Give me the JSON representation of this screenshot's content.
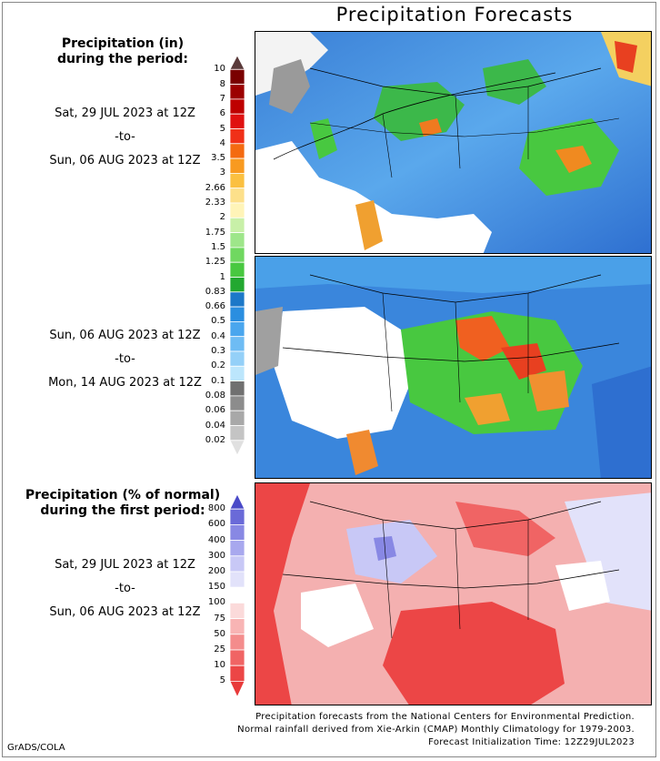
{
  "title": "Precipitation Forecasts",
  "amount_section": {
    "heading_line1": "Precipitation (in)",
    "heading_line2": "during the period:",
    "period1": {
      "start": "Sat, 29 JUL 2023 at 12Z",
      "sep": "-to-",
      "end": "Sun, 06 AUG 2023 at 12Z"
    },
    "period2": {
      "start": "Sun, 06 AUG 2023 at 12Z",
      "sep": "-to-",
      "end": "Mon, 14 AUG 2023 at 12Z"
    },
    "colorbar": {
      "labels": [
        "10",
        "8",
        "7",
        "6",
        "5",
        "4",
        "3.5",
        "3",
        "2.66",
        "2.33",
        "2",
        "1.75",
        "1.5",
        "1.25",
        "1",
        "0.83",
        "0.66",
        "0.5",
        "0.4",
        "0.3",
        "0.2",
        "0.1",
        "0.08",
        "0.06",
        "0.04",
        "0.02"
      ],
      "colors": [
        "#5a3a3a",
        "#7a0000",
        "#9c0000",
        "#be0000",
        "#e01010",
        "#f03018",
        "#f46a10",
        "#f89a20",
        "#fbc040",
        "#fde08a",
        "#fff4b8",
        "#c8f0a8",
        "#9ee68a",
        "#70d860",
        "#48c840",
        "#22a830",
        "#1c78c8",
        "#2a8ee0",
        "#4aa6ee",
        "#6ebcf4",
        "#94d0f8",
        "#bce6fc",
        "#707070",
        "#8c8c8c",
        "#a8a8a8",
        "#c4c4c4",
        "#e0e0e0"
      ]
    }
  },
  "percent_section": {
    "heading_line1": "Precipitation (% of normal)",
    "heading_line2": "during the first period:",
    "period": {
      "start": "Sat, 29 JUL 2023 at 12Z",
      "sep": "-to-",
      "end": "Sun, 06 AUG 2023 at 12Z"
    },
    "colorbar": {
      "labels": [
        "800",
        "600",
        "400",
        "300",
        "200",
        "150",
        "100",
        "75",
        "50",
        "25",
        "10",
        "5"
      ],
      "colors": [
        "#4a4ac8",
        "#6a6ad8",
        "#8888e4",
        "#a8a8ee",
        "#c8c8f6",
        "#e2e2fa",
        "#ffffff",
        "#fbdada",
        "#f8b4b4",
        "#f48c8c",
        "#f06464",
        "#ec4646",
        "#e83a3a"
      ]
    }
  },
  "footer": {
    "line1": "Precipitation forecasts from the National Centers for Environmental Prediction.",
    "line2": "Normal rainfall derived from Xie-Arkin (CMAP) Monthly Climatology for 1979-2003.",
    "line3": "Forecast Initialization Time: 12Z29JUL2023"
  },
  "credit": "GrADS/COLA"
}
